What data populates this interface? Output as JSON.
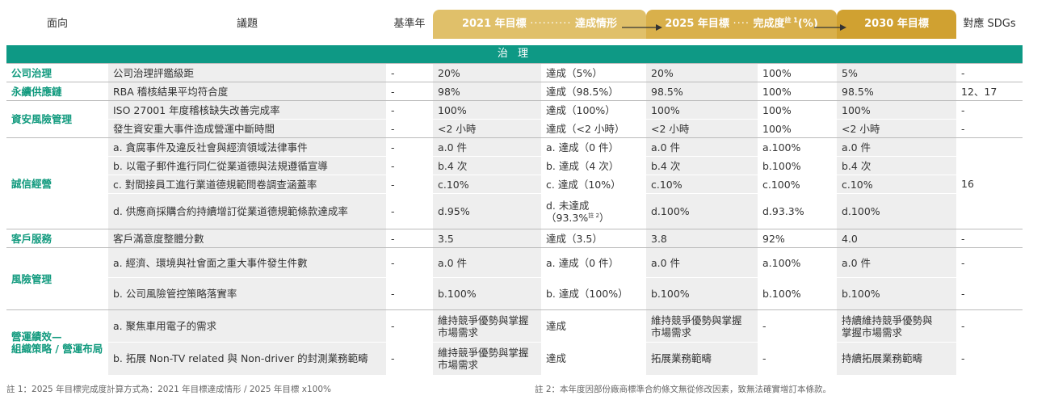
{
  "header": {
    "aspect": "面向",
    "topic": "議題",
    "baseline": "基準年",
    "target2021": "2021 年目標",
    "status2021": "達成情形",
    "target2025": "2025 年目標",
    "completion": "完成度",
    "completion_note": "註 1",
    "completion_unit": "(%)",
    "target2030": "2030 年目標",
    "sdgs": "對應 SDGs"
  },
  "band": "治 理",
  "sections": {
    "s1": "公司治理",
    "s2": "永續供應鏈",
    "s3": "資安風險管理",
    "s4": "誠信經營",
    "s5": "客戶服務",
    "s6": "風險管理",
    "s7a": "營運績效—",
    "s7b": "組織策略 / 營運布局"
  },
  "rows": [
    {
      "topic": "公司治理評鑑級距",
      "base": "-",
      "t2021": "20%",
      "status": "達成（5%）",
      "t2025": "20%",
      "comp": "100%",
      "t2030": "5%",
      "sdg": "-"
    },
    {
      "topic": "RBA 稽核結果平均符合度",
      "base": "-",
      "t2021": "98%",
      "status": "達成（98.5%）",
      "t2025": "98.5%",
      "comp": "100%",
      "t2030": "98.5%",
      "sdg": "12、17"
    },
    {
      "topic": "ISO 27001 年度稽核缺失改善完成率",
      "base": "-",
      "t2021": "100%",
      "status": "達成（100%）",
      "t2025": "100%",
      "comp": "100%",
      "t2030": "100%",
      "sdg": "-"
    },
    {
      "topic": "發生資安重大事件造成營運中斷時間",
      "base": "-",
      "t2021": "<2 小時",
      "status": "達成（<2 小時）",
      "t2025": "<2 小時",
      "comp": "100%",
      "t2030": "<2 小時",
      "sdg": "-"
    },
    {
      "topic": "a. 貪腐事件及違反社會與經濟領域法律事件",
      "base": "-",
      "t2021": "a.0 件",
      "status": "a. 達成（0 件）",
      "t2025": "a.0 件",
      "comp": "a.100%",
      "t2030": "a.0 件"
    },
    {
      "topic": "b. 以電子郵件進行同仁從業道德與法規遵循宣導",
      "base": "-",
      "t2021": "b.4 次",
      "status": "b. 達成（4 次）",
      "t2025": "b.4 次",
      "comp": "b.100%",
      "t2030": "b.4 次"
    },
    {
      "topic": "c. 對間接員工進行業道德規範問卷調查涵蓋率",
      "base": "-",
      "t2021": "c.10%",
      "status": "c. 達成（10%）",
      "t2025": "c.10%",
      "comp": "c.100%",
      "t2030": "c.10%"
    },
    {
      "topic": "d. 供應商採購合約持續增訂從業道德規範條款達成率",
      "base": "-",
      "t2021": "d.95%",
      "status_line1": "d. 未達成",
      "status_line2": "（93.3%",
      "status_note": "註 2",
      "status_close": "）",
      "t2025": "d.100%",
      "comp": "d.93.3%",
      "t2030": "d.100%"
    },
    {
      "topic": "客戶滿意度整體分數",
      "base": "-",
      "t2021": "3.5",
      "status": "達成（3.5）",
      "t2025": "3.8",
      "comp": "92%",
      "t2030": "4.0",
      "sdg": "-"
    },
    {
      "topic": "a. 經濟、環境與社會面之重大事件發生件數",
      "base": "-",
      "t2021": "a.0 件",
      "status": "a. 達成（0 件）",
      "t2025": "a.0 件",
      "comp": "a.100%",
      "t2030": "a.0 件",
      "sdg": "-"
    },
    {
      "topic": "b. 公司風險管控策略落實率",
      "base": "-",
      "t2021": "b.100%",
      "status": "b. 達成（100%）",
      "t2025": "b.100%",
      "comp": "b.100%",
      "t2030": "b.100%",
      "sdg": "-"
    },
    {
      "topic": "a. 聚焦車用電子的需求",
      "base": "-",
      "t2021_l1": "維持競爭優勢與掌握",
      "t2021_l2": "市場需求",
      "status": "達成",
      "t2025_l1": "維持競爭優勢與掌握",
      "t2025_l2": "市場需求",
      "comp": "-",
      "t2030_l1": "持續維持競爭優勢與",
      "t2030_l2": "掌握市場需求",
      "sdg": "-"
    },
    {
      "topic": "b. 拓展 Non-TV related 與 Non-driver 的封測業務範疇",
      "base": "-",
      "t2021_l1": "維持競爭優勢與掌握",
      "t2021_l2": "市場需求",
      "status": "達成",
      "t2025": "拓展業務範疇",
      "comp": "-",
      "t2030": "持續拓展業務範疇",
      "sdg": "-"
    }
  ],
  "integrity_sdg": "16",
  "footnotes": {
    "note1": "註 1：2025 年目標完成度計算方式為：2021 年目標達成情形 / 2025 年目標 x100%",
    "note2": "註 2：本年度因部份廠商標準合約條文無從修改因素，致無法確實增訂本條款。"
  }
}
